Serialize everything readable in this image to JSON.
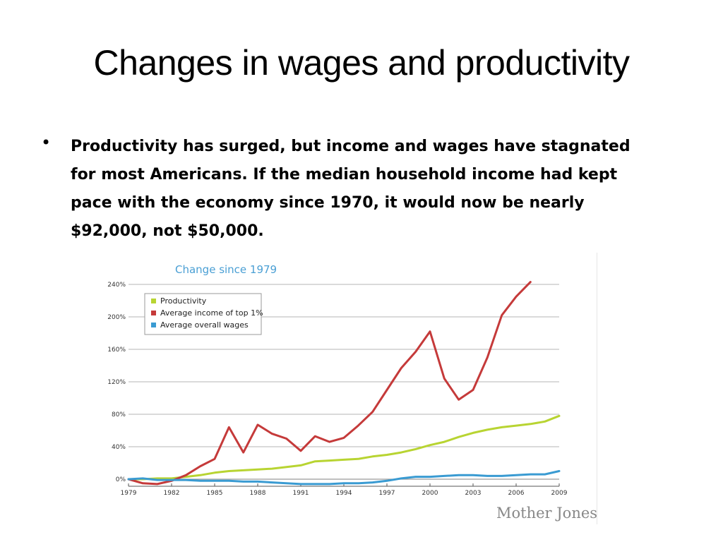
{
  "slide": {
    "title": "Changes in wages and productivity",
    "bullet": "Productivity has surged, but income and wages have stagnated for most Americans. If the median household income had kept pace with the economy since 1970, it would now be nearly $92,000, not $50,000."
  },
  "chart_data": {
    "type": "line",
    "title": "Change since 1979",
    "source_mark": "Mother Jones",
    "xlim": [
      1979,
      2009
    ],
    "ylim": [
      0,
      240
    ],
    "x_ticks": [
      "1979",
      "1982",
      "1985",
      "1988",
      "1991",
      "1994",
      "1997",
      "2000",
      "2003",
      "2006",
      "2009"
    ],
    "y_ticks": [
      "0%",
      "40%",
      "80%",
      "120%",
      "160%",
      "200%",
      "240%"
    ],
    "legend_position": "top-left",
    "grid": true,
    "series": [
      {
        "name": "Productivity",
        "color": "#b8d432",
        "x": [
          1979,
          1980,
          1981,
          1982,
          1983,
          1984,
          1985,
          1986,
          1987,
          1988,
          1989,
          1990,
          1991,
          1992,
          1993,
          1994,
          1995,
          1996,
          1997,
          1998,
          1999,
          2000,
          2001,
          2002,
          2003,
          2004,
          2005,
          2006,
          2007,
          2008,
          2009
        ],
        "y": [
          0,
          0,
          1,
          1,
          3,
          5,
          8,
          10,
          11,
          12,
          13,
          15,
          17,
          22,
          23,
          24,
          25,
          28,
          30,
          33,
          37,
          42,
          46,
          52,
          57,
          61,
          64,
          66,
          68,
          71,
          78
        ]
      },
      {
        "name": "Average income of top 1%",
        "color": "#c53a3a",
        "x": [
          1979,
          1980,
          1981,
          1982,
          1983,
          1984,
          1985,
          1986,
          1987,
          1988,
          1989,
          1990,
          1991,
          1992,
          1993,
          1994,
          1995,
          1996,
          1997,
          1998,
          1999,
          2000,
          2001,
          2002,
          2003,
          2004,
          2005,
          2006,
          2007
        ],
        "y": [
          0,
          -5,
          -6,
          -2,
          5,
          16,
          25,
          64,
          33,
          67,
          56,
          50,
          35,
          53,
          46,
          51,
          66,
          83,
          110,
          137,
          157,
          182,
          124,
          98,
          110,
          150,
          202,
          225,
          243
        ]
      },
      {
        "name": "Average overall wages",
        "color": "#3a9bd2",
        "x": [
          1979,
          1980,
          1981,
          1982,
          1983,
          1984,
          1985,
          1986,
          1987,
          1988,
          1989,
          1990,
          1991,
          1992,
          1993,
          1994,
          1995,
          1996,
          1997,
          1998,
          1999,
          2000,
          2001,
          2002,
          2003,
          2004,
          2005,
          2006,
          2007,
          2008,
          2009
        ],
        "y": [
          0,
          1,
          -1,
          -1,
          -1,
          -2,
          -2,
          -2,
          -3,
          -3,
          -4,
          -5,
          -6,
          -6,
          -6,
          -5,
          -5,
          -4,
          -2,
          1,
          3,
          3,
          4,
          5,
          5,
          4,
          4,
          5,
          6,
          6,
          10
        ]
      }
    ]
  }
}
